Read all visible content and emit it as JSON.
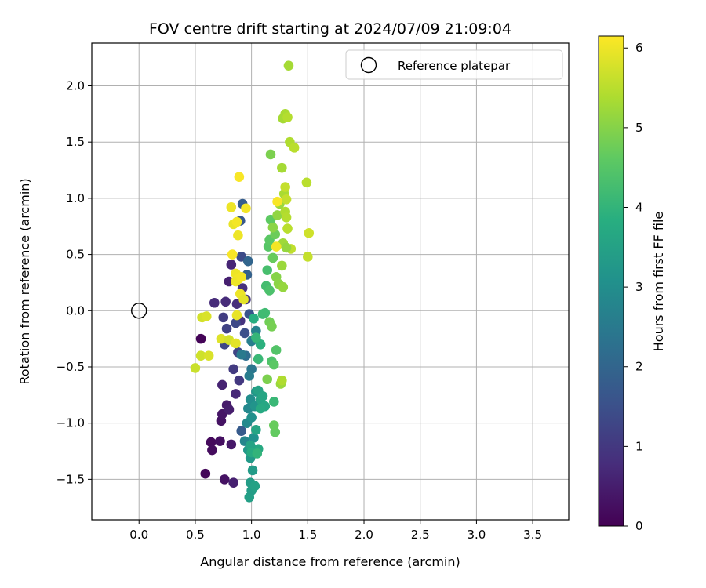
{
  "chart_data": {
    "type": "scatter",
    "title": "FOV centre drift starting at 2024/07/09 21:09:04",
    "xlabel": "Angular distance from reference (arcmin)",
    "ylabel": "Rotation from reference (arcmin)",
    "xlim": [
      -0.42,
      3.82
    ],
    "ylim": [
      -1.86,
      2.38
    ],
    "xticks": [
      0.0,
      0.5,
      1.0,
      1.5,
      2.0,
      2.5,
      3.0,
      3.5
    ],
    "yticks": [
      -1.5,
      -1.0,
      -0.5,
      0.0,
      0.5,
      1.0,
      1.5,
      2.0
    ],
    "grid": true,
    "legend": {
      "placement": "upper-right",
      "entries": [
        "Reference platepar"
      ]
    },
    "reference_point": {
      "name": "Reference platepar",
      "x": 0.0,
      "y": 0.0
    },
    "colorbar": {
      "label": "Hours from first FF file",
      "colormap": "viridis",
      "range": [
        0,
        6.15
      ],
      "ticks": [
        0,
        1,
        2,
        3,
        4,
        5,
        6
      ]
    },
    "points": [
      [
        0.55,
        -0.25,
        0.05
      ],
      [
        0.59,
        -1.45,
        0.1
      ],
      [
        0.64,
        -1.17,
        0.15
      ],
      [
        0.65,
        -1.24,
        0.2
      ],
      [
        0.72,
        -1.16,
        0.25
      ],
      [
        0.73,
        -0.98,
        0.3
      ],
      [
        0.74,
        -0.92,
        0.35
      ],
      [
        0.76,
        -1.5,
        0.3
      ],
      [
        0.78,
        -0.84,
        0.45
      ],
      [
        0.8,
        -0.88,
        0.5
      ],
      [
        0.82,
        -1.19,
        0.4
      ],
      [
        0.84,
        -1.53,
        0.55
      ],
      [
        0.74,
        -0.66,
        0.6
      ],
      [
        0.86,
        -0.74,
        0.7
      ],
      [
        0.8,
        0.26,
        0.55
      ],
      [
        0.82,
        0.41,
        0.65
      ],
      [
        0.77,
        0.08,
        0.75
      ],
      [
        0.87,
        0.06,
        0.8
      ],
      [
        0.9,
        -0.09,
        0.9
      ],
      [
        0.92,
        0.2,
        0.85
      ],
      [
        0.95,
        0.1,
        0.95
      ],
      [
        0.89,
        -0.62,
        1.0
      ],
      [
        0.84,
        -0.52,
        1.05
      ],
      [
        0.67,
        0.07,
        0.75
      ],
      [
        0.75,
        -0.06,
        1.1
      ],
      [
        0.78,
        -0.16,
        1.2
      ],
      [
        0.88,
        -0.37,
        1.25
      ],
      [
        0.76,
        -0.3,
        1.3
      ],
      [
        0.86,
        -0.11,
        1.35
      ],
      [
        0.91,
        0.48,
        1.4
      ],
      [
        0.94,
        -0.2,
        1.5
      ],
      [
        0.98,
        -0.03,
        1.6
      ],
      [
        0.9,
        0.8,
        1.7
      ],
      [
        0.92,
        0.95,
        1.8
      ],
      [
        0.96,
        0.32,
        1.9
      ],
      [
        0.97,
        0.44,
        2.0
      ],
      [
        0.91,
        -1.07,
        1.75
      ],
      [
        0.95,
        -0.4,
        2.2
      ],
      [
        1.0,
        -0.52,
        2.4
      ],
      [
        0.91,
        -0.39,
        2.5
      ],
      [
        0.98,
        -0.58,
        2.55
      ],
      [
        1.0,
        -0.27,
        2.6
      ],
      [
        1.04,
        -0.18,
        2.7
      ],
      [
        0.94,
        -1.16,
        2.8
      ],
      [
        0.97,
        -0.87,
        2.85
      ],
      [
        0.96,
        -1.0,
        2.9
      ],
      [
        0.99,
        -0.79,
        3.0
      ],
      [
        1.0,
        -0.95,
        3.05
      ],
      [
        1.02,
        -1.13,
        3.1
      ],
      [
        1.03,
        -0.85,
        3.15
      ],
      [
        1.04,
        -0.72,
        3.2
      ],
      [
        0.97,
        -1.24,
        3.25
      ],
      [
        0.99,
        -1.31,
        3.3
      ],
      [
        1.01,
        -1.42,
        3.35
      ],
      [
        0.99,
        -1.53,
        3.4
      ],
      [
        0.98,
        -1.66,
        3.45
      ],
      [
        1.0,
        -1.6,
        3.4
      ],
      [
        1.06,
        -0.71,
        3.5
      ],
      [
        1.08,
        -0.79,
        3.55
      ],
      [
        1.1,
        -0.76,
        3.6
      ],
      [
        1.12,
        -0.85,
        3.65
      ],
      [
        1.03,
        -1.56,
        3.5
      ],
      [
        1.06,
        -1.23,
        3.7
      ],
      [
        0.99,
        -1.2,
        3.55
      ],
      [
        1.04,
        -1.06,
        3.6
      ],
      [
        1.08,
        -0.87,
        3.7
      ],
      [
        1.02,
        -0.07,
        3.85
      ],
      [
        1.08,
        -0.3,
        3.9
      ],
      [
        1.0,
        -1.26,
        3.75
      ],
      [
        1.05,
        -1.27,
        4.0
      ],
      [
        1.04,
        -0.24,
        4.05
      ],
      [
        1.06,
        -0.43,
        4.1
      ],
      [
        1.1,
        -0.03,
        4.15
      ],
      [
        1.12,
        -0.02,
        4.2
      ],
      [
        1.13,
        0.22,
        4.25
      ],
      [
        1.14,
        0.36,
        4.3
      ],
      [
        1.16,
        0.18,
        4.35
      ],
      [
        1.2,
        -0.81,
        4.1
      ],
      [
        1.18,
        -0.45,
        4.4
      ],
      [
        1.22,
        -0.35,
        4.45
      ],
      [
        1.15,
        0.57,
        4.5
      ],
      [
        1.16,
        0.63,
        4.55
      ],
      [
        1.17,
        0.81,
        4.6
      ],
      [
        1.19,
        0.47,
        4.7
      ],
      [
        1.21,
        0.68,
        4.75
      ],
      [
        1.16,
        -0.1,
        4.8
      ],
      [
        1.18,
        -0.14,
        4.85
      ],
      [
        1.14,
        -0.61,
        4.9
      ],
      [
        1.22,
        0.3,
        5.0
      ],
      [
        1.24,
        0.24,
        5.05
      ],
      [
        1.21,
        -1.08,
        4.65
      ],
      [
        1.2,
        -1.02,
        4.7
      ],
      [
        1.17,
        1.39,
        4.9
      ],
      [
        1.26,
        -0.65,
        5.2
      ],
      [
        1.28,
        0.21,
        5.15
      ],
      [
        1.2,
        -0.48,
        4.55
      ],
      [
        1.23,
        0.85,
        5.1
      ],
      [
        1.25,
        0.95,
        5.2
      ],
      [
        1.27,
        1.27,
        5.3
      ],
      [
        1.29,
        1.04,
        5.35
      ],
      [
        1.3,
        0.88,
        5.4
      ],
      [
        1.31,
        0.83,
        5.45
      ],
      [
        1.32,
        0.73,
        5.5
      ],
      [
        1.28,
        0.6,
        5.25
      ],
      [
        1.3,
        1.75,
        5.35
      ],
      [
        1.28,
        1.71,
        5.3
      ],
      [
        1.32,
        1.72,
        5.45
      ],
      [
        1.34,
        1.5,
        5.4
      ],
      [
        1.38,
        1.45,
        5.5
      ],
      [
        1.33,
        2.18,
        5.3
      ],
      [
        1.27,
        0.4,
        5.2
      ],
      [
        1.35,
        0.55,
        5.55
      ],
      [
        1.31,
        0.99,
        5.6
      ],
      [
        1.3,
        1.1,
        5.6
      ],
      [
        1.49,
        1.14,
        5.5
      ],
      [
        1.5,
        0.48,
        5.6
      ],
      [
        1.51,
        0.69,
        5.7
      ],
      [
        1.27,
        -0.62,
        5.4
      ],
      [
        1.31,
        0.56,
        5.15
      ],
      [
        1.19,
        0.74,
        5.05
      ],
      [
        0.5,
        -0.51,
        5.65
      ],
      [
        0.55,
        -0.4,
        5.7
      ],
      [
        0.56,
        -0.06,
        5.75
      ],
      [
        0.6,
        -0.05,
        5.8
      ],
      [
        0.62,
        -0.4,
        5.8
      ],
      [
        0.73,
        -0.25,
        5.85
      ],
      [
        0.8,
        -0.26,
        5.75
      ],
      [
        0.82,
        0.92,
        6.0
      ],
      [
        0.84,
        0.77,
        5.95
      ],
      [
        0.86,
        0.33,
        6.0
      ],
      [
        0.88,
        0.28,
        6.05
      ],
      [
        0.9,
        0.15,
        6.0
      ],
      [
        0.93,
        0.1,
        5.9
      ],
      [
        0.95,
        0.91,
        6.05
      ],
      [
        0.89,
        1.19,
        6.1
      ],
      [
        0.88,
        0.67,
        6.0
      ],
      [
        0.87,
        0.79,
        6.05
      ],
      [
        0.83,
        0.5,
        6.1
      ],
      [
        0.86,
        0.26,
        6.0
      ],
      [
        0.91,
        0.3,
        6.05
      ],
      [
        1.23,
        0.97,
        6.1
      ],
      [
        1.22,
        0.57,
        6.05
      ],
      [
        0.87,
        -0.04,
        5.95
      ],
      [
        0.86,
        -0.29,
        5.9
      ]
    ]
  }
}
